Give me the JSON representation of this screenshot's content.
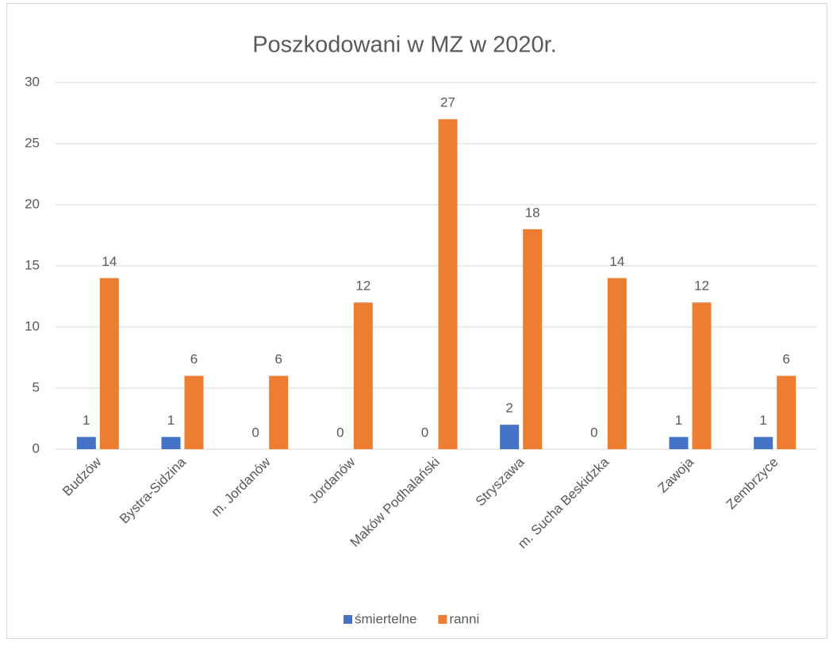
{
  "chart_data": {
    "type": "bar",
    "title": "Poszkodowani w MZ w 2020r.",
    "categories": [
      "Budzów",
      "Bystra-Sidzina",
      "m. Jordanów",
      "Jordanów",
      "Maków Podhalański",
      "Stryszawa",
      "m. Sucha Beskidzka",
      "Zawoja",
      "Zembrzyce"
    ],
    "series": [
      {
        "name": "śmiertelne",
        "color": "#4472c4",
        "values": [
          1,
          1,
          0,
          0,
          0,
          2,
          0,
          1,
          1
        ]
      },
      {
        "name": "ranni",
        "color": "#ed7d31",
        "values": [
          14,
          6,
          6,
          12,
          27,
          18,
          14,
          12,
          6
        ]
      }
    ],
    "ylim": [
      0,
      30
    ],
    "yticks": [
      0,
      5,
      10,
      15,
      20,
      25,
      30
    ],
    "grid": true,
    "legend": "bottom"
  }
}
